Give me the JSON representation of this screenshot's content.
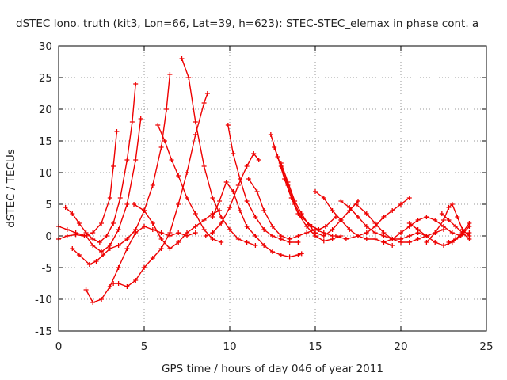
{
  "chart_data": {
    "type": "scatter",
    "title": "dSTEC Iono. truth (kit3, Lon=66, Lat=39, h=623): STEC-STEC_elemax in phase cont. a",
    "xlabel": "GPS time / hours of day 046 of year 2011",
    "ylabel": "dSTEC  / TECUs",
    "xlim": [
      0,
      25
    ],
    "ylim": [
      -15,
      30
    ],
    "xticks": [
      0,
      5,
      10,
      15,
      20,
      25
    ],
    "yticks": [
      -15,
      -10,
      -5,
      0,
      5,
      10,
      15,
      20,
      25,
      30
    ],
    "grid": true,
    "legend": "none",
    "marker": "+",
    "color": "#ee0000",
    "series": [
      {
        "x": [
          0.0,
          0.5,
          1.0,
          1.5,
          2.0,
          2.5,
          3.0,
          3.2,
          3.4
        ],
        "y": [
          -0.5,
          0.0,
          0.2,
          0.0,
          0.5,
          2.0,
          6.0,
          11.0,
          16.5
        ]
      },
      {
        "x": [
          0.4,
          0.8,
          1.2,
          1.6,
          2.0,
          2.4,
          2.8,
          3.2,
          3.6,
          4.0,
          4.3,
          4.5
        ],
        "y": [
          4.5,
          3.5,
          2.0,
          0.5,
          -0.5,
          -1.0,
          0.0,
          2.0,
          6.0,
          12.0,
          18.0,
          24.0
        ]
      },
      {
        "x": [
          0.0,
          0.5,
          1.0,
          1.6,
          2.0,
          2.5,
          3.0,
          3.5,
          4.0,
          4.5,
          4.8
        ],
        "y": [
          1.5,
          1.0,
          0.5,
          0.0,
          -1.5,
          -2.5,
          -1.5,
          1.0,
          5.0,
          12.0,
          18.5
        ]
      },
      {
        "x": [
          0.8,
          1.2,
          1.8,
          2.2,
          2.6,
          3.0,
          3.5,
          4.0,
          4.5,
          5.0,
          5.5,
          6.0,
          6.3,
          6.5
        ],
        "y": [
          -2.0,
          -3.0,
          -4.5,
          -4.0,
          -3.0,
          -2.0,
          -1.5,
          -0.5,
          1.0,
          4.0,
          8.0,
          14.0,
          20.0,
          25.5
        ]
      },
      {
        "x": [
          1.6,
          2.0,
          2.5,
          3.0,
          3.5,
          4.0,
          4.5,
          5.0,
          5.5,
          6.0,
          6.5,
          7.0,
          7.5,
          8.0
        ],
        "y": [
          -8.5,
          -10.5,
          -10.0,
          -8.0,
          -5.0,
          -2.0,
          0.5,
          1.5,
          1.0,
          0.5,
          0.0,
          0.5,
          0.0,
          0.5
        ]
      },
      {
        "x": [
          3.2,
          3.5,
          4.0,
          4.5,
          5.0,
          5.5,
          6.0,
          6.5,
          7.0,
          7.5,
          8.0,
          8.5,
          8.7
        ],
        "y": [
          -7.5,
          -7.5,
          -8.0,
          -7.0,
          -5.0,
          -3.5,
          -2.0,
          0.5,
          5.0,
          10.0,
          16.0,
          21.0,
          22.5
        ]
      },
      {
        "x": [
          5.8,
          6.2,
          6.6,
          7.0,
          7.5,
          8.0,
          8.5,
          9.0,
          9.5
        ],
        "y": [
          17.5,
          15.0,
          12.0,
          9.5,
          6.0,
          3.5,
          1.0,
          -0.5,
          -1.0
        ]
      },
      {
        "x": [
          4.4,
          5.0,
          5.5,
          6.0,
          6.5,
          7.0,
          7.5,
          8.0,
          8.5,
          9.0,
          9.4
        ],
        "y": [
          5.0,
          4.0,
          2.0,
          -0.5,
          -2.0,
          -1.0,
          0.5,
          1.5,
          2.5,
          3.5,
          4.0
        ]
      },
      {
        "x": [
          7.2,
          7.6,
          8.0,
          8.5,
          9.0,
          9.5,
          10.0,
          10.5,
          11.0,
          11.5
        ],
        "y": [
          28.0,
          25.0,
          18.0,
          11.0,
          6.0,
          3.0,
          1.0,
          -0.5,
          -1.0,
          -1.5
        ]
      },
      {
        "x": [
          9.0,
          9.4,
          9.8,
          10.2,
          10.6,
          11.0,
          11.5,
          12.0,
          12.5,
          13.0,
          13.5,
          14.0,
          14.2
        ],
        "y": [
          3.0,
          5.5,
          8.5,
          7.0,
          4.0,
          1.5,
          0.0,
          -1.5,
          -2.5,
          -3.0,
          -3.3,
          -3.0,
          -2.8
        ]
      },
      {
        "x": [
          9.9,
          10.2,
          10.6,
          11.0,
          11.5,
          12.0,
          12.5,
          13.0,
          13.5,
          14.0
        ],
        "y": [
          17.5,
          13.0,
          9.0,
          5.5,
          3.0,
          1.0,
          0.0,
          -0.5,
          -1.0,
          -1.0
        ]
      },
      {
        "x": [
          8.6,
          9.0,
          9.5,
          10.0,
          10.5,
          11.0,
          11.4,
          11.7
        ],
        "y": [
          0.0,
          0.5,
          2.0,
          4.5,
          8.0,
          11.0,
          13.0,
          12.0
        ]
      },
      {
        "x": [
          11.1,
          11.6,
          12.0,
          12.5,
          13.0,
          13.5,
          14.0,
          14.5,
          15.0,
          15.5,
          16.0
        ],
        "y": [
          9.0,
          7.0,
          4.0,
          1.5,
          0.0,
          -0.5,
          0.0,
          0.5,
          1.0,
          0.5,
          0.0
        ]
      },
      {
        "x": [
          12.4,
          12.8,
          13.2,
          13.6,
          14.0,
          14.5,
          15.0,
          15.5,
          16.0,
          16.5
        ],
        "y": [
          16.0,
          12.5,
          9.0,
          6.0,
          3.5,
          1.5,
          0.0,
          -0.8,
          -0.5,
          0.0
        ]
      },
      {
        "x": [
          12.6,
          13.0,
          13.4,
          13.8,
          14.2,
          14.8,
          15.2,
          15.6,
          16.2
        ],
        "y": [
          14.0,
          11.0,
          8.0,
          5.0,
          3.0,
          1.5,
          1.0,
          1.5,
          3.0
        ]
      },
      {
        "x": [
          13.0,
          13.4,
          13.8,
          14.2,
          14.6,
          15.0,
          15.5,
          16.0,
          16.5,
          17.0,
          17.5
        ],
        "y": [
          11.5,
          8.5,
          5.5,
          3.5,
          1.8,
          0.5,
          0.0,
          1.0,
          2.5,
          4.0,
          5.5
        ]
      },
      {
        "x": [
          15.0,
          15.5,
          16.0,
          16.5,
          17.0,
          17.5,
          18.0,
          18.5,
          19.0,
          19.5
        ],
        "y": [
          7.0,
          6.0,
          4.0,
          2.5,
          1.0,
          0.0,
          -0.5,
          -0.5,
          -1.0,
          -1.5
        ]
      },
      {
        "x": [
          16.5,
          17.0,
          17.5,
          18.0,
          18.5,
          19.0,
          19.5,
          20.0,
          20.5,
          21.0,
          21.5
        ],
        "y": [
          5.5,
          4.5,
          3.0,
          1.5,
          0.5,
          0.0,
          -0.5,
          -0.5,
          0.0,
          0.5,
          0.0
        ]
      },
      {
        "x": [
          17.4,
          18.0,
          18.5,
          19.0,
          19.5,
          20.0,
          20.5,
          21.0,
          21.5,
          22.0,
          22.5
        ],
        "y": [
          5.0,
          3.5,
          2.0,
          0.5,
          -0.5,
          -1.0,
          -1.0,
          -0.5,
          0.0,
          0.5,
          1.0
        ]
      },
      {
        "x": [
          16.2,
          16.8,
          17.5,
          18.0,
          18.5,
          19.0,
          19.5,
          20.0,
          20.5
        ],
        "y": [
          0.0,
          -0.5,
          0.0,
          0.5,
          1.5,
          3.0,
          4.0,
          5.0,
          6.0
        ]
      },
      {
        "x": [
          19.0,
          19.5,
          20.0,
          20.5,
          21.0,
          21.5,
          22.0,
          22.5,
          23.0,
          23.5,
          24.0
        ],
        "y": [
          -1.0,
          -0.5,
          0.5,
          1.5,
          2.5,
          3.0,
          2.5,
          1.5,
          0.5,
          0.0,
          0.5
        ]
      },
      {
        "x": [
          20.5,
          21.0,
          21.5,
          22.0,
          22.5,
          23.0,
          23.5,
          24.0
        ],
        "y": [
          2.0,
          1.0,
          0.0,
          -1.0,
          -1.5,
          -1.0,
          0.0,
          1.5
        ]
      },
      {
        "x": [
          21.5,
          22.0,
          22.5,
          22.8,
          23.0,
          23.3,
          23.6,
          24.0
        ],
        "y": [
          -1.0,
          0.5,
          2.5,
          4.5,
          5.0,
          3.0,
          1.0,
          0.0
        ]
      },
      {
        "x": [
          22.4,
          22.8,
          23.2,
          23.6,
          24.0
        ],
        "y": [
          3.5,
          2.5,
          1.5,
          0.5,
          -0.5
        ]
      },
      {
        "x": [
          22.8,
          23.2,
          23.6,
          24.0
        ],
        "y": [
          -1.0,
          -0.5,
          0.5,
          2.0
        ]
      }
    ]
  }
}
